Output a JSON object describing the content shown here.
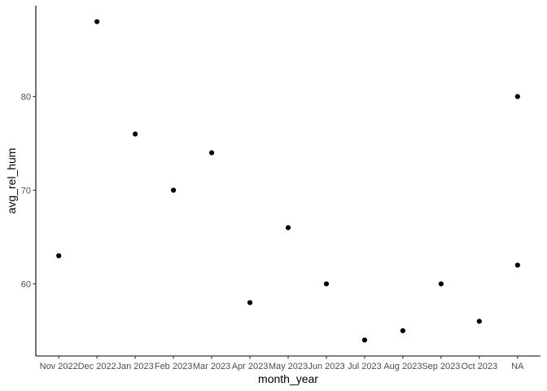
{
  "chart_data": {
    "type": "scatter",
    "title": "",
    "xlabel": "month_year",
    "ylabel": "avg_rel_hum",
    "categories": [
      "Nov 2022",
      "Dec 2022",
      "Jan 2023",
      "Feb 2023",
      "Mar 2023",
      "Apr 2023",
      "May 2023",
      "Jun 2023",
      "Jul 2023",
      "Aug 2023",
      "Sep 2023",
      "Oct 2023",
      "NA"
    ],
    "points": [
      {
        "x": "Nov 2022",
        "y": 63
      },
      {
        "x": "Dec 2022",
        "y": 88
      },
      {
        "x": "Jan 2023",
        "y": 76
      },
      {
        "x": "Feb 2023",
        "y": 70
      },
      {
        "x": "Mar 2023",
        "y": 74
      },
      {
        "x": "Apr 2023",
        "y": 58
      },
      {
        "x": "May 2023",
        "y": 66
      },
      {
        "x": "Jun 2023",
        "y": 60
      },
      {
        "x": "Jul 2023",
        "y": 54
      },
      {
        "x": "Aug 2023",
        "y": 55
      },
      {
        "x": "Sep 2023",
        "y": 60
      },
      {
        "x": "Oct 2023",
        "y": 56
      },
      {
        "x": "NA",
        "y": 80
      },
      {
        "x": "NA",
        "y": 62
      }
    ],
    "yticks": [
      60,
      70,
      80
    ],
    "ylim": [
      52.3,
      89.7
    ],
    "grid": false,
    "legend": "none",
    "point_color": "#000000",
    "axis_color": "#000000"
  }
}
